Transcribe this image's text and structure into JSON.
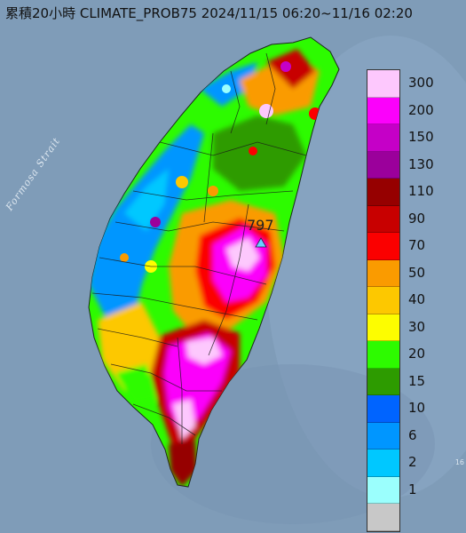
{
  "title": "累積20小時 CLIMATE_PROB75 2024/11/15 06:20~11/16 02:20",
  "strait_label": "Formosa Strait",
  "max_marker": {
    "value": "797"
  },
  "edge_tick": "16",
  "legend": {
    "items": [
      {
        "label": "300",
        "color": "#fdc8fd"
      },
      {
        "label": "200",
        "color": "#fb01fb"
      },
      {
        "label": "150",
        "color": "#c500c7"
      },
      {
        "label": "130",
        "color": "#9b009b"
      },
      {
        "label": "110",
        "color": "#960000"
      },
      {
        "label": "90",
        "color": "#c80000"
      },
      {
        "label": "70",
        "color": "#fb0000"
      },
      {
        "label": "50",
        "color": "#fa9b00"
      },
      {
        "label": "40",
        "color": "#fdc800"
      },
      {
        "label": "30",
        "color": "#fdfd00"
      },
      {
        "label": "20",
        "color": "#2dfb00"
      },
      {
        "label": "15",
        "color": "#2d9b00"
      },
      {
        "label": "10",
        "color": "#0064ff"
      },
      {
        "label": "6",
        "color": "#0096ff"
      },
      {
        "label": "2",
        "color": "#00c8ff"
      },
      {
        "label": "1",
        "color": "#9bfffd"
      },
      {
        "label": "",
        "color": "#c8c8c8"
      }
    ]
  }
}
